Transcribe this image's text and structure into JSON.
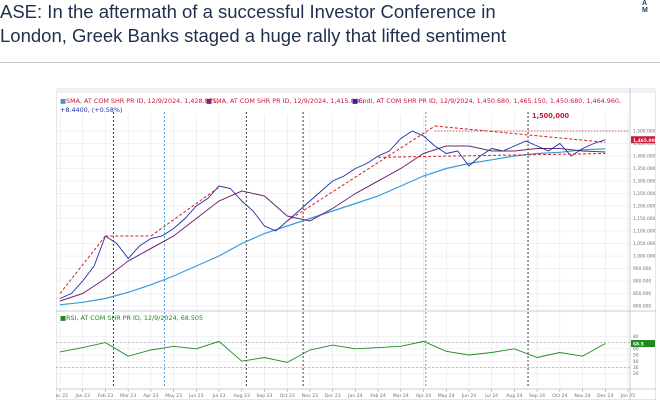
{
  "headline": {
    "line1": "ASE: In the aftermath of a successful Investor Conference in",
    "line2": "London, Greek Banks staged a huge rally that lifted sentiment"
  },
  "logo_lines": [
    "A",
    "M"
  ],
  "colors": {
    "headline": "#1f2f4f",
    "price": "#1c2fa8",
    "sma_long": "#3a9ad9",
    "sma_short": "#6b2a6e",
    "trend": "#d42020",
    "rsi": "#1e8a1e",
    "label": "#c9183a",
    "grid": "#e3e6ea"
  },
  "chart_data": [
    {
      "type": "line",
      "legend": {
        "sma_long": "SMA, AT COM SHR PR ID, 12/9/2024, 1,428.871,",
        "sma_short": "SMA, AT COM SHR PR ID, 12/9/2024, 1,415.846,",
        "candle": "Cndl, AT COM SHR PR ID, 12/9/2024, 1,450.680, 1,465.150, 1,450.680, 1,464.960,",
        "change": "+8.4400, (+0.58%)"
      },
      "annotation": "1,500,000",
      "x_ticks": [
        "Dec 22",
        "Jan 23",
        "Feb 23",
        "Mar 23",
        "Apr 23",
        "May 23",
        "Jun 23",
        "Jul 23",
        "Aug 23",
        "Sep 23",
        "Oct 23",
        "Nov 23",
        "Dec 23",
        "Jan 24",
        "Feb 24",
        "Mar 24",
        "Apr 24",
        "May 24",
        "Jun 24",
        "Jul 24",
        "Aug 24",
        "Sep 24",
        "Oct 24",
        "Nov 24",
        "Dec 24",
        "Jan 25"
      ],
      "y_ticks": [
        1500,
        1450,
        1400,
        1350,
        1300,
        1250,
        1200,
        1150,
        1100,
        1050,
        1000,
        950,
        900,
        850,
        800
      ],
      "ylim": [
        800,
        1560
      ],
      "price": {
        "x": [
          0,
          0.5,
          1,
          1.5,
          2,
          2.5,
          3,
          3.5,
          4,
          4.5,
          5,
          5.5,
          6,
          6.5,
          7,
          7.5,
          8,
          8.5,
          9,
          9.5,
          10,
          10.5,
          11,
          11.5,
          12,
          12.5,
          13,
          13.5,
          14,
          14.5,
          15,
          15.5,
          16,
          16.5,
          17,
          17.5,
          18,
          18.5,
          19,
          19.5,
          20,
          20.5,
          21,
          21.5,
          22,
          22.5,
          23,
          23.5,
          24
        ],
        "y": [
          830,
          850,
          900,
          960,
          1080,
          1050,
          990,
          1040,
          1070,
          1080,
          1110,
          1150,
          1200,
          1230,
          1280,
          1270,
          1220,
          1180,
          1120,
          1100,
          1140,
          1180,
          1220,
          1260,
          1300,
          1320,
          1350,
          1370,
          1400,
          1420,
          1470,
          1500,
          1480,
          1440,
          1410,
          1420,
          1360,
          1400,
          1430,
          1420,
          1440,
          1460,
          1440,
          1420,
          1450,
          1400,
          1430,
          1450,
          1465
        ]
      },
      "sma_short": {
        "x": [
          0,
          1,
          2,
          3,
          4,
          5,
          6,
          7,
          8,
          9,
          10,
          11,
          12,
          13,
          14,
          15,
          16,
          17,
          18,
          19,
          20,
          21,
          22,
          23,
          24
        ],
        "y": [
          820,
          850,
          910,
          980,
          1030,
          1080,
          1150,
          1220,
          1260,
          1240,
          1160,
          1140,
          1190,
          1250,
          1300,
          1350,
          1410,
          1440,
          1440,
          1420,
          1420,
          1430,
          1430,
          1420,
          1416
        ]
      },
      "sma_long": {
        "x": [
          0,
          1,
          2,
          3,
          4,
          5,
          6,
          7,
          8,
          9,
          10,
          11,
          12,
          13,
          14,
          15,
          16,
          17,
          18,
          19,
          20,
          21,
          22,
          23,
          24
        ],
        "y": [
          805,
          815,
          830,
          855,
          885,
          920,
          960,
          1000,
          1050,
          1090,
          1120,
          1150,
          1180,
          1210,
          1240,
          1280,
          1320,
          1350,
          1370,
          1385,
          1400,
          1410,
          1415,
          1425,
          1429
        ]
      },
      "trendlines": [
        {
          "x": [
            0,
            2
          ],
          "y": [
            850,
            1080
          ]
        },
        {
          "x": [
            2,
            4
          ],
          "y": [
            1080,
            1080
          ]
        },
        {
          "x": [
            4,
            7
          ],
          "y": [
            1080,
            1275
          ]
        },
        {
          "x": [
            10,
            16.5
          ],
          "y": [
            1140,
            1520
          ]
        },
        {
          "x": [
            16.5,
            24
          ],
          "y": [
            1520,
            1455
          ]
        },
        {
          "x": [
            14,
            24
          ],
          "y": [
            1395,
            1410
          ]
        }
      ],
      "vlines": {
        "black": [
          2.35,
          8.2,
          10.7,
          20.6
        ],
        "blue": [
          4.6,
          16.1
        ]
      }
    },
    {
      "type": "line",
      "legend": "RSI, AT COM SHR PR ID, 12/9/2024, 68.505",
      "ylim": [
        0,
        100
      ],
      "y_ticks": [
        80,
        70,
        60,
        50,
        40,
        30,
        20
      ],
      "levels": [
        70,
        30
      ],
      "rsi": {
        "x": [
          0,
          1,
          2,
          3,
          4,
          5,
          6,
          7,
          8,
          9,
          10,
          11,
          12,
          13,
          14,
          15,
          16,
          17,
          18,
          19,
          20,
          21,
          22,
          23,
          24
        ],
        "y": [
          55,
          62,
          70,
          48,
          58,
          64,
          60,
          72,
          40,
          46,
          38,
          58,
          66,
          60,
          62,
          64,
          72,
          56,
          50,
          54,
          60,
          46,
          54,
          48,
          68.5
        ]
      }
    }
  ]
}
